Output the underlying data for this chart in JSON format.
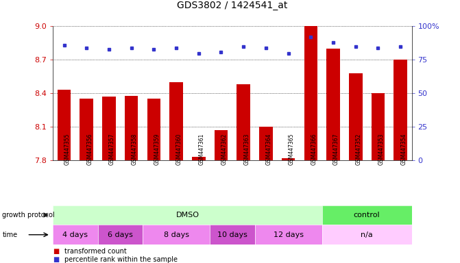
{
  "title": "GDS3802 / 1424541_at",
  "samples": [
    "GSM447355",
    "GSM447356",
    "GSM447357",
    "GSM447358",
    "GSM447359",
    "GSM447360",
    "GSM447361",
    "GSM447362",
    "GSM447363",
    "GSM447364",
    "GSM447365",
    "GSM447366",
    "GSM447367",
    "GSM447352",
    "GSM447353",
    "GSM447354"
  ],
  "bar_values": [
    8.43,
    8.35,
    8.37,
    8.38,
    8.35,
    8.5,
    7.83,
    8.07,
    8.48,
    8.1,
    7.82,
    9.0,
    8.8,
    8.58,
    8.4,
    8.7
  ],
  "percentile_values": [
    86,
    84,
    83,
    84,
    83,
    84,
    80,
    81,
    85,
    84,
    80,
    92,
    88,
    85,
    84,
    85
  ],
  "bar_color": "#cc0000",
  "percentile_color": "#3333cc",
  "ymin": 7.8,
  "ymax": 9.0,
  "yticks": [
    7.8,
    8.1,
    8.4,
    8.7,
    9.0
  ],
  "right_yticks": [
    0,
    25,
    50,
    75,
    100
  ],
  "right_yticklabels": [
    "0",
    "25",
    "50",
    "75",
    "100%"
  ],
  "growth_protocol_groups": [
    {
      "label": "DMSO",
      "start": 0,
      "end": 12,
      "color": "#ccffcc"
    },
    {
      "label": "control",
      "start": 12,
      "end": 16,
      "color": "#66ee66"
    }
  ],
  "time_groups": [
    {
      "label": "4 days",
      "start": 0,
      "end": 2,
      "color": "#ee88ee"
    },
    {
      "label": "6 days",
      "start": 2,
      "end": 4,
      "color": "#cc55cc"
    },
    {
      "label": "8 days",
      "start": 4,
      "end": 7,
      "color": "#ee88ee"
    },
    {
      "label": "10 days",
      "start": 7,
      "end": 9,
      "color": "#cc55cc"
    },
    {
      "label": "12 days",
      "start": 9,
      "end": 12,
      "color": "#ee88ee"
    },
    {
      "label": "n/a",
      "start": 12,
      "end": 16,
      "color": "#ffccff"
    }
  ],
  "legend_bar_label": "transformed count",
  "legend_percentile_label": "percentile rank within the sample",
  "growth_protocol_label": "growth protocol",
  "time_label": "time",
  "background_color": "#ffffff"
}
